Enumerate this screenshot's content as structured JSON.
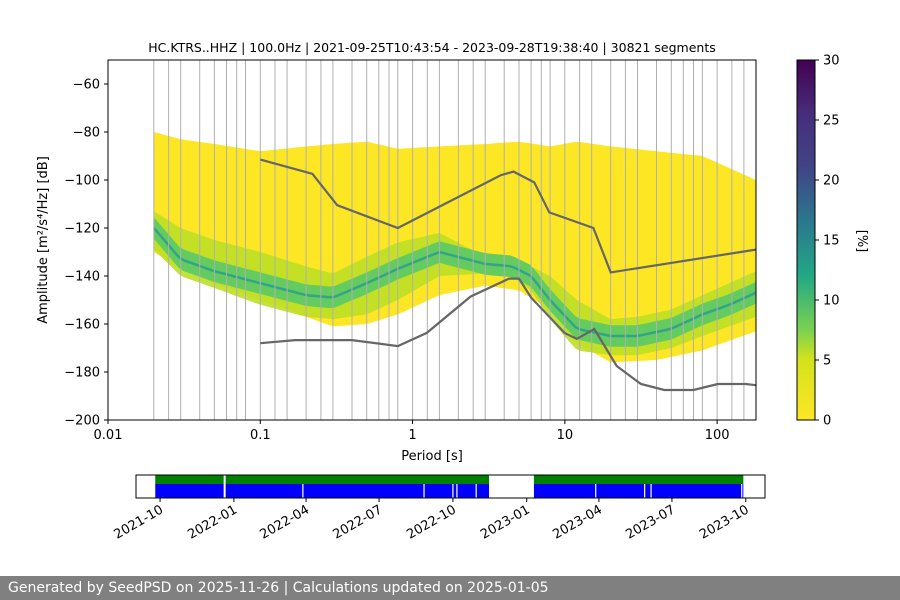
{
  "chart_data": [
    {
      "type": "heatmap",
      "title": "HC.KTRS..HHZ | 100.0Hz | 2021-09-25T10:43:54 - 2023-09-28T19:38:40 | 30821 segments",
      "xlabel": "Period [s]",
      "ylabel": "Amplitude [m²/s⁴/Hz] [dB]",
      "xscale": "log",
      "xlim": [
        0.01,
        180
      ],
      "ylim": [
        -200,
        -50
      ],
      "x_ticks": [
        0.01,
        0.1,
        1,
        10,
        100
      ],
      "x_tick_labels": [
        "0.01",
        "0.1",
        "1",
        "10",
        "100"
      ],
      "y_ticks": [
        -200,
        -180,
        -160,
        -140,
        -120,
        -100,
        -80,
        -60
      ],
      "y_tick_labels": [
        "−200",
        "−180",
        "−160",
        "−140",
        "−120",
        "−100",
        "−80",
        "−60"
      ],
      "colorbar": {
        "label": "[%]",
        "range": [
          0,
          30
        ],
        "ticks": [
          0,
          5,
          10,
          15,
          20,
          25,
          30
        ],
        "tick_labels": [
          "0",
          "5",
          "10",
          "15",
          "20",
          "25",
          "30"
        ],
        "colormap": "viridis"
      },
      "mode_line": {
        "period": [
          0.02,
          0.03,
          0.05,
          0.1,
          0.2,
          0.3,
          0.5,
          0.8,
          1.5,
          3,
          4.5,
          6,
          8,
          12,
          20,
          30,
          50,
          80,
          120,
          180
        ],
        "db": [
          -120,
          -133,
          -138,
          -143,
          -148,
          -149,
          -143,
          -137,
          -130,
          -135,
          -136,
          -140,
          -150,
          -162,
          -165,
          -165,
          -162,
          -156,
          -152,
          -147
        ],
        "upper_db": [
          -113,
          -120,
          -125,
          -130,
          -136,
          -139,
          -132,
          -126,
          -122,
          -132,
          -133,
          -136,
          -140,
          -150,
          -158,
          -157,
          -154,
          -148,
          -143,
          -138
        ],
        "lower_db": [
          -129,
          -140,
          -145,
          -152,
          -157,
          -158,
          -156,
          -150,
          -140,
          -139,
          -140,
          -146,
          -158,
          -171,
          -173,
          -173,
          -170,
          -165,
          -161,
          -157
        ]
      },
      "coverage_db": {
        "period": [
          0.02,
          0.03,
          0.05,
          0.1,
          0.2,
          0.3,
          0.5,
          0.8,
          1.5,
          3,
          5,
          8,
          12,
          20,
          40,
          80,
          180
        ],
        "top": [
          -80,
          -83,
          -85,
          -88,
          -86,
          -85,
          -84,
          -87,
          -86,
          -85,
          -84,
          -86,
          -84,
          -86,
          -88,
          -90,
          -100
        ],
        "bottom": [
          -130,
          -137,
          -143,
          -150,
          -157,
          -161,
          -160,
          -156,
          -148,
          -144,
          -146,
          -154,
          -168,
          -176,
          -175,
          -171,
          -163
        ]
      },
      "grid_periods": [
        0.02,
        0.025,
        0.03,
        0.04,
        0.05,
        0.06,
        0.07,
        0.08,
        0.1,
        0.125,
        0.15,
        0.2,
        0.25,
        0.3,
        0.4,
        0.5,
        0.6,
        0.7,
        0.8,
        1,
        1.25,
        1.5,
        2,
        2.5,
        3,
        4,
        5,
        6,
        7,
        8,
        10,
        12.5,
        15,
        20,
        25,
        30,
        40,
        50,
        60,
        70,
        80,
        100,
        125,
        150
      ],
      "noise_models": [
        {
          "name": "NHNM",
          "period": [
            0.1,
            0.22,
            0.32,
            0.8,
            3.8,
            4.6,
            6.3,
            7.9,
            15.4,
            20,
            180
          ],
          "db": [
            -91.5,
            -97.4,
            -110.5,
            -120,
            -98,
            -96.5,
            -101,
            -113.5,
            -120,
            -138.5,
            -129
          ]
        },
        {
          "name": "NLNM",
          "period": [
            0.1,
            0.17,
            0.4,
            0.8,
            1.24,
            2.4,
            4.3,
            5.0,
            6.0,
            10.0,
            12.0,
            15.6,
            21.9,
            31.6,
            45,
            70,
            101,
            154,
            180
          ],
          "db": [
            -168,
            -166.7,
            -166.7,
            -169.2,
            -163.7,
            -148.6,
            -141.1,
            -141.1,
            -149,
            -163.8,
            -166.2,
            -162.1,
            -177.5,
            -185,
            -187.5,
            -187.5,
            -185,
            -185,
            -185.5
          ]
        }
      ]
    },
    {
      "type": "timeline",
      "title": "",
      "date_range": [
        "2021-09-01",
        "2023-10-25"
      ],
      "x_tick_labels": [
        "2021-10",
        "2022-01",
        "2022-04",
        "2022-07",
        "2022-10",
        "2023-01",
        "2023-04",
        "2023-07",
        "2023-10"
      ],
      "x_tick_dates": [
        "2021-10-01",
        "2022-01-01",
        "2022-04-01",
        "2022-07-01",
        "2022-10-01",
        "2023-01-01",
        "2023-04-01",
        "2023-07-01",
        "2023-10-01"
      ],
      "available_periods": [
        {
          "start": "2021-09-25",
          "end": "2022-11-15"
        },
        {
          "start": "2023-01-10",
          "end": "2023-09-28"
        }
      ],
      "gap_dates": [
        "2021-12-20",
        "2022-03-28",
        "2022-08-26",
        "2022-10-01",
        "2022-10-06",
        "2022-10-30",
        "2023-03-28",
        "2023-05-28",
        "2023-06-05",
        "2023-09-26"
      ],
      "colors": {
        "data": "#0000ff",
        "psd": "#008000",
        "border": "#000000"
      }
    }
  ],
  "footer": {
    "text": "Generated by SeedPSD on 2025-11-26 | Calculations updated on 2025-01-05"
  }
}
